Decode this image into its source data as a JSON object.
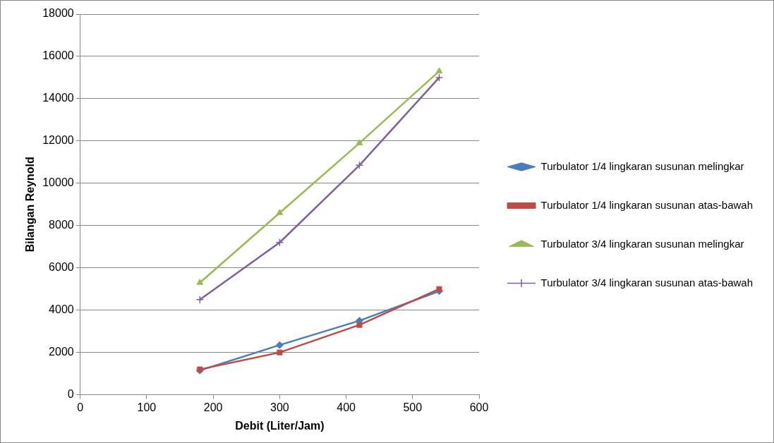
{
  "chart_data": {
    "type": "line",
    "xlabel": "Debit (Liter/Jam)",
    "ylabel": "Bilangan Reynold",
    "xlim": [
      0,
      600
    ],
    "xticks": [
      0,
      100,
      200,
      300,
      400,
      500,
      600
    ],
    "ylim": [
      0,
      18000
    ],
    "yticks": [
      0,
      2000,
      4000,
      6000,
      8000,
      10000,
      12000,
      14000,
      16000,
      18000
    ],
    "grid": "y",
    "legend": "right",
    "x": [
      180,
      300,
      420,
      540
    ],
    "series": [
      {
        "name": "Turbulator 1/4 lingkaran susunan melingkar",
        "color": "#4a7ebb",
        "marker": "diamond",
        "values": [
          1150,
          2350,
          3500,
          4900
        ]
      },
      {
        "name": "Turbulator 1/4 lingkaran susunan atas-bawah",
        "color": "#be4b48",
        "marker": "square",
        "values": [
          1200,
          2000,
          3300,
          5000
        ]
      },
      {
        "name": "Turbulator 3/4 lingkaran susunan melingkar",
        "color": "#98b954",
        "marker": "triangle",
        "values": [
          5300,
          8600,
          11900,
          15300
        ]
      },
      {
        "name": "Turbulator 3/4 lingkaran susunan atas-bawah",
        "color": "#7d60a0",
        "marker": "cross",
        "values": [
          4500,
          7200,
          10850,
          15000
        ]
      }
    ]
  }
}
